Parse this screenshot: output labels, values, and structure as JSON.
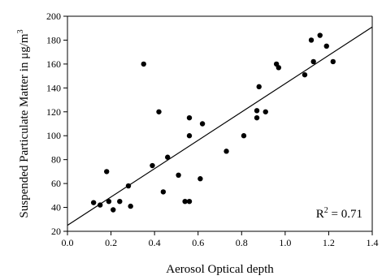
{
  "chart_data": {
    "type": "scatter",
    "title": "",
    "xlabel": "Aerosol Optical depth",
    "ylabel": "Suspended Particulate Matter in μg/m",
    "ylabel_superscript": "3",
    "xlim": [
      0.0,
      1.4
    ],
    "ylim": [
      20,
      200
    ],
    "x_ticks": [
      "0.0",
      "0.2",
      "0.4",
      "0.6",
      "0.8",
      "1.0",
      "1.2",
      "1.4"
    ],
    "y_ticks": [
      "20",
      "40",
      "60",
      "80",
      "100",
      "120",
      "140",
      "160",
      "180",
      "200"
    ],
    "grid": false,
    "legend": "none",
    "points": [
      {
        "x": 0.12,
        "y": 44
      },
      {
        "x": 0.15,
        "y": 42
      },
      {
        "x": 0.18,
        "y": 70
      },
      {
        "x": 0.19,
        "y": 45
      },
      {
        "x": 0.21,
        "y": 38
      },
      {
        "x": 0.24,
        "y": 45
      },
      {
        "x": 0.28,
        "y": 58
      },
      {
        "x": 0.29,
        "y": 41
      },
      {
        "x": 0.35,
        "y": 160
      },
      {
        "x": 0.39,
        "y": 75
      },
      {
        "x": 0.42,
        "y": 120
      },
      {
        "x": 0.44,
        "y": 53
      },
      {
        "x": 0.46,
        "y": 82
      },
      {
        "x": 0.51,
        "y": 67
      },
      {
        "x": 0.54,
        "y": 45
      },
      {
        "x": 0.56,
        "y": 45
      },
      {
        "x": 0.56,
        "y": 115
      },
      {
        "x": 0.56,
        "y": 100
      },
      {
        "x": 0.61,
        "y": 64
      },
      {
        "x": 0.62,
        "y": 110
      },
      {
        "x": 0.73,
        "y": 87
      },
      {
        "x": 0.81,
        "y": 100
      },
      {
        "x": 0.87,
        "y": 121
      },
      {
        "x": 0.87,
        "y": 115
      },
      {
        "x": 0.88,
        "y": 141
      },
      {
        "x": 0.91,
        "y": 120
      },
      {
        "x": 0.96,
        "y": 160
      },
      {
        "x": 0.97,
        "y": 157
      },
      {
        "x": 1.09,
        "y": 151
      },
      {
        "x": 1.12,
        "y": 180
      },
      {
        "x": 1.13,
        "y": 162
      },
      {
        "x": 1.16,
        "y": 184
      },
      {
        "x": 1.19,
        "y": 175
      },
      {
        "x": 1.22,
        "y": 162
      }
    ],
    "trendline": {
      "x": [
        0.0,
        1.4
      ],
      "y": [
        25,
        191
      ]
    },
    "annotation": {
      "text": "R",
      "superscript": "2",
      "suffix": " = 0.71"
    }
  }
}
